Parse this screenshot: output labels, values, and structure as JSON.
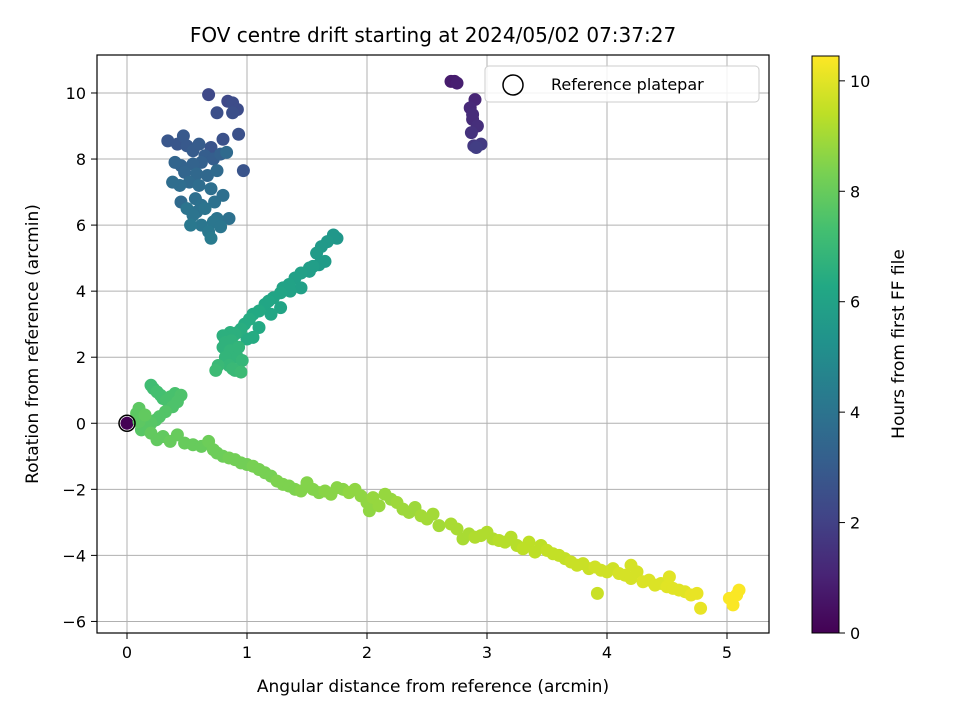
{
  "chart_data": {
    "type": "scatter",
    "title": "FOV centre drift starting at 2024/05/02 07:37:27",
    "xlabel": "Angular distance from reference (arcmin)",
    "ylabel": "Rotation from reference (arcmin)",
    "colorbar_label": "Hours from first FF file",
    "colormap": "viridis",
    "xlim": [
      -0.25,
      5.35
    ],
    "ylim": [
      -6.35,
      11.15
    ],
    "clim": [
      0,
      10.45
    ],
    "xticks": [
      0,
      1,
      2,
      3,
      4,
      5
    ],
    "yticks": [
      -6,
      -4,
      -2,
      0,
      2,
      4,
      6,
      8,
      10
    ],
    "colorbar_ticks": [
      0,
      2,
      4,
      6,
      8,
      10
    ],
    "grid": true,
    "legend_location": "top-right",
    "legend": [
      {
        "label": "Reference platepar",
        "marker": "open-circle"
      }
    ],
    "reference_point": {
      "x": 0,
      "y": 0
    },
    "series": [
      {
        "segment": "early-cluster",
        "x": [
          2.7,
          2.73,
          2.75,
          2.86,
          2.88,
          2.9,
          2.87,
          2.89,
          2.92,
          2.95,
          2.88,
          2.91
        ],
        "y": [
          10.35,
          10.35,
          10.3,
          9.55,
          9.35,
          9.8,
          8.8,
          8.4,
          9.0,
          8.45,
          9.2,
          8.35
        ],
        "hours": [
          0.8,
          0.8,
          0.9,
          1.2,
          1.3,
          1.1,
          1.5,
          1.7,
          1.4,
          1.8,
          1.3,
          1.9
        ]
      },
      {
        "segment": "upper-left-cluster",
        "x": [
          0.68,
          0.84,
          0.88,
          0.92,
          0.75,
          0.88,
          0.93,
          0.8,
          0.7,
          0.97,
          0.34,
          0.42,
          0.47,
          0.5,
          0.55,
          0.6,
          0.65,
          0.72,
          0.78,
          0.62,
          0.55,
          0.45,
          0.4,
          0.48,
          0.58,
          0.67,
          0.75,
          0.83,
          0.52,
          0.44,
          0.38,
          0.6,
          0.7,
          0.8,
          0.57,
          0.62,
          0.73,
          0.85,
          0.5,
          0.55,
          0.65,
          0.72,
          0.78,
          0.62,
          0.68,
          0.53,
          0.45,
          0.58,
          0.7,
          0.75
        ],
        "y": [
          9.95,
          9.75,
          9.7,
          9.5,
          9.4,
          9.4,
          8.75,
          8.6,
          8.35,
          7.65,
          8.55,
          8.45,
          8.7,
          8.4,
          8.25,
          8.45,
          8.1,
          8.0,
          8.15,
          7.9,
          7.85,
          7.8,
          7.9,
          7.6,
          7.55,
          7.5,
          7.65,
          8.2,
          7.3,
          7.2,
          7.3,
          7.2,
          7.1,
          6.9,
          6.8,
          6.6,
          6.7,
          6.2,
          6.5,
          6.3,
          6.5,
          6.1,
          5.95,
          6.0,
          5.8,
          6.0,
          6.7,
          6.4,
          5.6,
          6.2
        ],
        "hours": [
          2.3,
          2.3,
          2.4,
          2.4,
          2.5,
          2.5,
          2.6,
          2.6,
          2.7,
          2.7,
          2.8,
          2.8,
          2.9,
          2.9,
          3.0,
          3.0,
          3.1,
          3.1,
          3.2,
          3.2,
          3.3,
          3.3,
          3.4,
          3.4,
          3.5,
          3.5,
          3.6,
          3.6,
          3.6,
          3.7,
          3.7,
          3.7,
          3.8,
          3.8,
          3.8,
          3.9,
          3.9,
          3.9,
          4.0,
          4.0,
          4.0,
          4.1,
          4.1,
          4.1,
          4.2,
          4.2,
          3.6,
          3.9,
          4.3,
          4.0
        ]
      },
      {
        "segment": "middle-diagonal",
        "x": [
          1.75,
          1.72,
          1.67,
          1.62,
          1.58,
          1.65,
          1.55,
          1.52,
          1.45,
          1.4,
          1.35,
          1.3,
          1.28,
          1.22,
          1.18,
          1.15,
          1.1,
          1.05,
          1.02,
          0.98,
          0.95,
          0.92,
          0.9,
          0.86,
          0.82,
          0.8,
          0.86,
          0.92,
          0.96,
          0.85,
          0.88,
          0.9,
          0.95,
          1.05,
          0.86,
          0.76,
          0.74,
          0.82,
          0.87,
          0.93,
          0.8,
          1.28,
          1.45,
          1.6,
          1.52,
          1.36,
          1.2,
          1.1,
          1.0
        ],
        "y": [
          5.6,
          5.7,
          5.5,
          5.35,
          5.15,
          4.9,
          4.75,
          4.6,
          4.55,
          4.4,
          4.2,
          4.1,
          3.95,
          3.8,
          3.7,
          3.6,
          3.4,
          3.3,
          3.15,
          3.0,
          2.85,
          2.75,
          2.7,
          2.6,
          2.45,
          2.3,
          2.2,
          2.0,
          1.9,
          1.75,
          1.65,
          1.6,
          1.55,
          2.6,
          2.75,
          1.75,
          1.6,
          2.0,
          2.5,
          2.3,
          2.65,
          3.5,
          4.1,
          4.8,
          4.7,
          4.0,
          3.3,
          2.9,
          2.55
        ],
        "hours": [
          5.5,
          5.5,
          5.6,
          5.6,
          5.7,
          5.7,
          5.8,
          5.8,
          5.9,
          5.9,
          6.0,
          6.0,
          6.1,
          6.1,
          6.2,
          6.2,
          6.3,
          6.3,
          6.4,
          6.4,
          6.5,
          6.5,
          6.6,
          6.6,
          6.7,
          6.7,
          6.8,
          6.8,
          6.9,
          6.9,
          7.0,
          7.0,
          7.1,
          6.4,
          6.6,
          7.0,
          7.1,
          6.8,
          6.7,
          6.8,
          6.6,
          6.1,
          5.9,
          5.7,
          5.8,
          6.0,
          6.2,
          6.3,
          6.4
        ]
      },
      {
        "segment": "lower-trail",
        "x": [
          0.2,
          0.22,
          0.25,
          0.28,
          0.3,
          0.33,
          0.36,
          0.4,
          0.45,
          0.42,
          0.38,
          0.32,
          0.27,
          0.24,
          0.2,
          0.16,
          0.12,
          0.1,
          0.08,
          0.1,
          0.15,
          0.2,
          0.25,
          0.3,
          0.36,
          0.42,
          0.48,
          0.55,
          0.62,
          0.68,
          0.72,
          0.75,
          0.8,
          0.85,
          0.9,
          0.95,
          1.0,
          1.05,
          1.1,
          1.15,
          1.2,
          1.25,
          1.3,
          1.35,
          1.4,
          1.45,
          1.5,
          1.55,
          1.6,
          1.65,
          1.7,
          1.75,
          1.8,
          1.85,
          1.9,
          1.95,
          2.0,
          2.05,
          2.1,
          2.15,
          2.2,
          2.25,
          2.3,
          2.35,
          2.4,
          2.45,
          2.5,
          2.55,
          2.6,
          2.7,
          2.75,
          2.8,
          2.85,
          2.9,
          2.95,
          3.0,
          3.05,
          3.1,
          3.15,
          3.2,
          3.25,
          3.3,
          3.35,
          3.4,
          3.45,
          3.5,
          3.55,
          3.6,
          3.65,
          3.7,
          3.75,
          3.8,
          3.85,
          3.9,
          3.95,
          4.0,
          4.05,
          4.1,
          4.15,
          4.2,
          4.25,
          4.3,
          4.35,
          4.4,
          4.45,
          4.5,
          4.55,
          4.6,
          4.65,
          4.7,
          4.75,
          4.78,
          5.02,
          5.05,
          5.08,
          5.1,
          4.52,
          4.2,
          3.92,
          2.02
        ],
        "y": [
          1.15,
          1.05,
          0.95,
          0.85,
          0.75,
          0.7,
          0.8,
          0.9,
          0.85,
          0.65,
          0.5,
          0.35,
          0.2,
          0.1,
          0.0,
          -0.1,
          -0.2,
          0.05,
          0.3,
          0.45,
          0.25,
          -0.3,
          -0.5,
          -0.4,
          -0.55,
          -0.35,
          -0.6,
          -0.65,
          -0.7,
          -0.55,
          -0.8,
          -0.9,
          -1.0,
          -1.05,
          -1.1,
          -1.2,
          -1.25,
          -1.3,
          -1.4,
          -1.5,
          -1.6,
          -1.75,
          -1.85,
          -1.9,
          -2.0,
          -2.05,
          -1.8,
          -2.0,
          -2.1,
          -2.05,
          -2.15,
          -1.95,
          -2.0,
          -2.1,
          -2.0,
          -2.2,
          -2.4,
          -2.25,
          -2.5,
          -2.15,
          -2.3,
          -2.4,
          -2.6,
          -2.7,
          -2.55,
          -2.8,
          -2.9,
          -2.75,
          -3.1,
          -3.05,
          -3.2,
          -3.5,
          -3.35,
          -3.45,
          -3.4,
          -3.3,
          -3.5,
          -3.55,
          -3.6,
          -3.45,
          -3.7,
          -3.8,
          -3.6,
          -3.9,
          -3.7,
          -3.85,
          -3.95,
          -4.0,
          -4.1,
          -4.2,
          -4.3,
          -4.25,
          -4.4,
          -4.35,
          -4.45,
          -4.5,
          -4.4,
          -4.55,
          -4.6,
          -4.7,
          -4.5,
          -4.8,
          -4.75,
          -4.9,
          -4.85,
          -4.95,
          -5.0,
          -5.05,
          -5.1,
          -5.2,
          -5.15,
          -5.6,
          -5.3,
          -5.5,
          -5.2,
          -5.05,
          -4.65,
          -4.3,
          -5.15,
          -2.65
        ],
        "hours": [
          7.2,
          7.2,
          7.3,
          7.3,
          7.3,
          7.4,
          7.4,
          7.4,
          7.5,
          7.5,
          7.5,
          7.6,
          7.6,
          7.6,
          7.7,
          7.7,
          7.7,
          7.8,
          7.8,
          7.8,
          7.9,
          7.9,
          7.9,
          7.9,
          8.0,
          8.0,
          8.0,
          8.0,
          8.0,
          8.1,
          8.1,
          8.1,
          8.1,
          8.2,
          8.2,
          8.2,
          8.2,
          8.3,
          8.3,
          8.3,
          8.3,
          8.4,
          8.4,
          8.4,
          8.4,
          8.5,
          8.5,
          8.5,
          8.5,
          8.6,
          8.6,
          8.6,
          8.6,
          8.7,
          8.7,
          8.7,
          8.7,
          8.8,
          8.8,
          8.8,
          8.8,
          8.9,
          8.9,
          8.9,
          8.9,
          9.0,
          9.0,
          9.0,
          9.0,
          9.1,
          9.1,
          9.1,
          9.1,
          9.2,
          9.2,
          9.2,
          9.2,
          9.3,
          9.3,
          9.3,
          9.3,
          9.4,
          9.4,
          9.4,
          9.4,
          9.5,
          9.5,
          9.5,
          9.5,
          9.6,
          9.6,
          9.6,
          9.6,
          9.7,
          9.7,
          9.7,
          9.7,
          9.8,
          9.8,
          9.8,
          9.8,
          9.9,
          9.9,
          9.9,
          9.9,
          10.0,
          10.0,
          10.0,
          10.0,
          10.1,
          10.1,
          10.1,
          10.4,
          10.4,
          10.4,
          10.4,
          10.0,
          9.8,
          9.6,
          8.7
        ]
      },
      {
        "segment": "origin-point",
        "x": [
          0.0
        ],
        "y": [
          0.0
        ],
        "hours": [
          0.0
        ]
      }
    ]
  }
}
